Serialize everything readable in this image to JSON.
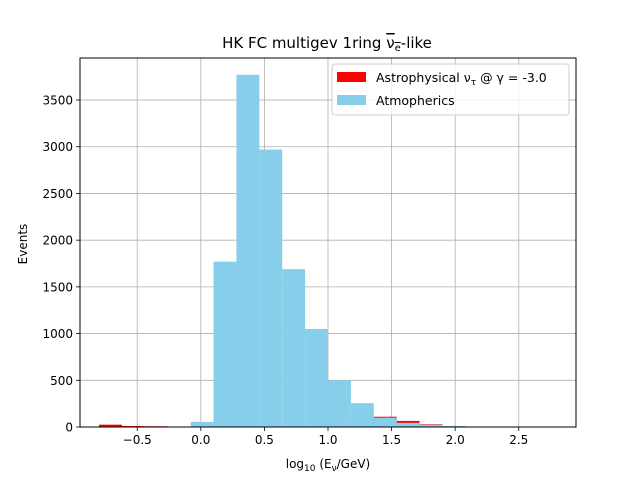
{
  "chart_data": {
    "type": "bar",
    "title": "HK FC multigev 1ring νe-like",
    "xlabel": "log10 (Eν/GeV)",
    "ylabel": "Events",
    "xlim": [
      -0.95,
      2.95
    ],
    "ylim": [
      0,
      3950
    ],
    "grid": true,
    "legend_position": "top-right",
    "x_ticks": [
      "−0.5",
      "0.0",
      "0.5",
      "1.0",
      "1.5",
      "2.0",
      "2.5"
    ],
    "y_ticks": [
      "0",
      "500",
      "1000",
      "1500",
      "2000",
      "2500",
      "3000",
      "3500"
    ],
    "bin_edges": [
      -0.8,
      -0.62,
      -0.44,
      -0.26,
      -0.08,
      0.1,
      0.28,
      0.46,
      0.64,
      0.82,
      1.0,
      1.18,
      1.36,
      1.54,
      1.72,
      1.9,
      2.08,
      2.26,
      2.44,
      2.62,
      2.8
    ],
    "series": [
      {
        "name": "Astrophysical ντ @ γ = -3.0",
        "color": "#ff0000",
        "values": [
          25,
          10,
          8,
          5,
          3,
          0,
          0,
          0,
          0,
          0,
          10,
          45,
          110,
          65,
          30,
          8,
          0,
          0,
          0,
          0
        ]
      },
      {
        "name": "Atmopherics",
        "color": "#87ceeb",
        "values": [
          0,
          0,
          0,
          0,
          55,
          1770,
          3770,
          2970,
          1690,
          1050,
          500,
          255,
          100,
          45,
          25,
          10,
          3,
          0,
          0,
          0
        ]
      }
    ]
  }
}
